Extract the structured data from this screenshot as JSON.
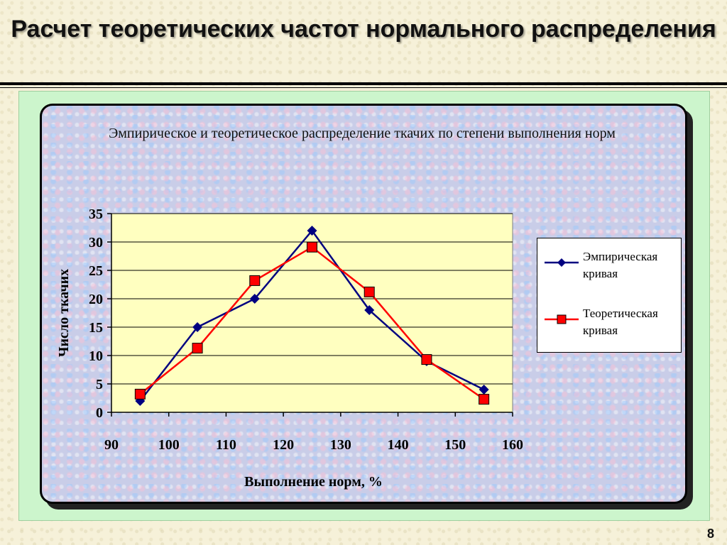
{
  "slide": {
    "title": "Расчет теоретических частот нормального распределения",
    "page_number": "8"
  },
  "chart_data": {
    "type": "line",
    "title": "Эмпирическое и теоретическое распределение ткачих по степени выполнения норм",
    "xlabel": "Выполнение норм, %",
    "ylabel": "Число ткачих",
    "xlim": [
      90,
      160
    ],
    "ylim": [
      0,
      35
    ],
    "x_ticks": [
      90,
      100,
      110,
      120,
      130,
      140,
      150,
      160
    ],
    "y_ticks": [
      0,
      5,
      10,
      15,
      20,
      25,
      30,
      35
    ],
    "x": [
      95,
      105,
      115,
      125,
      135,
      145,
      155
    ],
    "series": [
      {
        "name": "Эмпирическая кривая",
        "values": [
          2,
          15,
          20,
          32,
          18,
          9,
          4
        ],
        "color": "#000080",
        "marker": "diamond"
      },
      {
        "name": "Теоретическая кривая",
        "values": [
          3.2,
          11.3,
          23.2,
          29.1,
          21.2,
          9.3,
          2.3
        ],
        "color": "#ff0000",
        "marker": "square"
      }
    ],
    "grid": "horizontal",
    "plot_background": "#ffffc0",
    "legend_position": "right"
  }
}
